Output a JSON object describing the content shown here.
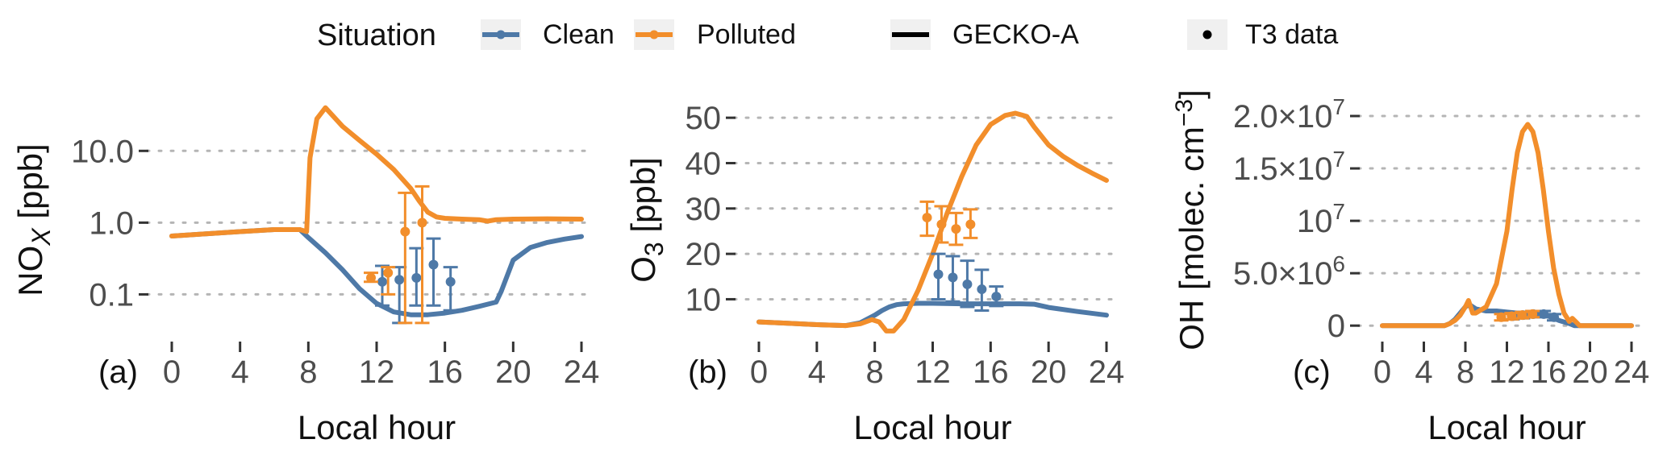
{
  "legend": {
    "title": "Situation",
    "items": [
      {
        "label": "Clean",
        "color": "#4e79a7",
        "kind": "line-point"
      },
      {
        "label": "Polluted",
        "color": "#f28e2b",
        "kind": "line-point"
      },
      {
        "label": "GECKO-A",
        "color": "#000000",
        "kind": "line"
      },
      {
        "label": "T3 data",
        "color": "#000000",
        "kind": "point"
      }
    ]
  },
  "colors": {
    "clean": "#4e79a7",
    "polluted": "#f28e2b",
    "grid": "#b5b5b5"
  },
  "chart_data": [
    {
      "type": "line",
      "panel_label": "(a)",
      "xlabel": "Local hour",
      "ylabel": "NO",
      "ylabel_sub": "X",
      "ylabel_unit": " [ppb]",
      "yscale": "log",
      "xlim": [
        0,
        24
      ],
      "ylim": [
        0.03,
        60
      ],
      "xticks": [
        0,
        4,
        8,
        12,
        16,
        20,
        24
      ],
      "yticks": [
        0.1,
        1,
        10
      ],
      "ytick_labels": [
        "0.1",
        "1.0",
        "10.0"
      ],
      "series": [
        {
          "name": "Clean",
          "source": "GECKO-A",
          "color": "#4e79a7",
          "x": [
            0,
            2,
            4,
            6,
            7.5,
            8,
            9,
            10,
            11,
            12,
            13,
            14,
            15,
            16,
            17,
            18,
            19,
            19.3,
            20,
            21,
            22,
            23,
            24
          ],
          "y": [
            0.65,
            0.7,
            0.75,
            0.8,
            0.8,
            0.62,
            0.38,
            0.22,
            0.12,
            0.075,
            0.057,
            0.052,
            0.052,
            0.055,
            0.06,
            0.068,
            0.078,
            0.11,
            0.3,
            0.45,
            0.53,
            0.59,
            0.64
          ]
        },
        {
          "name": "Polluted",
          "source": "GECKO-A",
          "color": "#f28e2b",
          "x": [
            0,
            2,
            4,
            6,
            7.5,
            7.9,
            8.1,
            8.5,
            9,
            10,
            11,
            12,
            13,
            14,
            14.5,
            15,
            15.5,
            16,
            17,
            18,
            18.5,
            19,
            20,
            22,
            24
          ],
          "y": [
            0.65,
            0.7,
            0.75,
            0.8,
            0.8,
            0.75,
            8.0,
            28.0,
            40.0,
            22.0,
            14.0,
            9.0,
            5.5,
            3.0,
            2.0,
            1.4,
            1.2,
            1.15,
            1.12,
            1.1,
            1.05,
            1.1,
            1.12,
            1.13,
            1.12
          ]
        }
      ],
      "points": [
        {
          "name": "Clean",
          "color": "#4e79a7",
          "x": [
            12,
            13,
            14,
            15,
            16
          ],
          "y": [
            0.15,
            0.16,
            0.17,
            0.26,
            0.15
          ],
          "ylo": [
            0.07,
            0.04,
            0.07,
            0.07,
            0.06
          ],
          "yhi": [
            0.25,
            0.24,
            0.44,
            0.6,
            0.24
          ]
        },
        {
          "name": "Polluted",
          "color": "#f28e2b",
          "x": [
            12,
            13,
            14,
            15
          ],
          "y": [
            0.17,
            0.2,
            0.75,
            1.0
          ],
          "ylo": [
            0.15,
            0.1,
            0.04,
            0.04
          ],
          "yhi": [
            0.2,
            0.24,
            2.6,
            3.2
          ]
        }
      ]
    },
    {
      "type": "line",
      "panel_label": "(b)",
      "xlabel": "Local hour",
      "ylabel": "O",
      "ylabel_sub": "3",
      "ylabel_unit": " [ppb]",
      "yscale": "linear",
      "xlim": [
        0,
        24
      ],
      "ylim": [
        2.8,
        55
      ],
      "xticks": [
        0,
        4,
        8,
        12,
        16,
        20,
        24
      ],
      "yticks": [
        10,
        20,
        30,
        40,
        50
      ],
      "ytick_labels": [
        "10",
        "20",
        "30",
        "40",
        "50"
      ],
      "series": [
        {
          "name": "Clean",
          "source": "GECKO-A",
          "color": "#4e79a7",
          "x": [
            0,
            2,
            4,
            6,
            7,
            8,
            8.5,
            9,
            9.5,
            10,
            11,
            12,
            14,
            16,
            18,
            19,
            20,
            22,
            24
          ],
          "y": [
            5.0,
            4.7,
            4.4,
            4.2,
            4.8,
            6.5,
            7.5,
            8.3,
            8.8,
            9.0,
            9.1,
            9.1,
            9.0,
            9.0,
            9.0,
            8.9,
            8.2,
            7.3,
            6.5
          ]
        },
        {
          "name": "Polluted",
          "source": "GECKO-A",
          "color": "#f28e2b",
          "x": [
            0,
            2,
            4,
            6,
            7,
            7.8,
            8.3,
            8.8,
            9.3,
            10,
            11,
            12,
            13,
            14,
            15,
            16,
            17,
            17.7,
            18.5,
            19,
            20,
            21,
            22,
            23,
            24
          ],
          "y": [
            5.0,
            4.7,
            4.4,
            4.2,
            4.6,
            5.5,
            5.0,
            3.0,
            3.0,
            5.5,
            12.0,
            20.0,
            29.0,
            37.0,
            44.0,
            48.5,
            50.5,
            51.0,
            50.3,
            48.0,
            44.0,
            41.5,
            39.5,
            37.8,
            36.2
          ]
        }
      ],
      "points": [
        {
          "name": "Clean",
          "color": "#4e79a7",
          "x": [
            12,
            13,
            14,
            15,
            16
          ],
          "y": [
            15.5,
            14.8,
            13.3,
            12.2,
            10.6
          ],
          "ylo": [
            10.0,
            9.5,
            8.3,
            7.5,
            8.5
          ],
          "yhi": [
            20.0,
            19.5,
            18.5,
            16.5,
            12.8
          ]
        },
        {
          "name": "Polluted",
          "color": "#f28e2b",
          "x": [
            12,
            13,
            14,
            15
          ],
          "y": [
            28.0,
            26.5,
            25.5,
            26.5
          ],
          "ylo": [
            24.0,
            22.5,
            22.0,
            23.5
          ],
          "yhi": [
            31.5,
            30.5,
            29.0,
            29.8
          ]
        }
      ]
    },
    {
      "type": "line",
      "panel_label": "(c)",
      "xlabel": "Local hour",
      "ylabel": "OH [molec. cm",
      "ylabel_sup": "−3",
      "ylabel_end": "]",
      "yscale": "linear",
      "xlim": [
        0,
        24
      ],
      "ylim": [
        -0.06,
        2.2
      ],
      "xticks": [
        0,
        4,
        8,
        12,
        16,
        20,
        24
      ],
      "xtick_labels": [
        "0",
        "4",
        "8",
        "12",
        "16",
        "20",
        "24"
      ],
      "yticks": [
        0,
        0.5,
        1.0,
        1.5,
        2.0
      ],
      "ytick_labels": [
        {
          "mantissa": "0",
          "exponent": ""
        },
        {
          "mantissa": "5.0×10",
          "exponent": "6"
        },
        {
          "mantissa": "10",
          "exponent": "7"
        },
        {
          "mantissa": "1.5×10",
          "exponent": "7"
        },
        {
          "mantissa": "2.0×10",
          "exponent": "7"
        }
      ],
      "y_unit": "1e7 molec. cm-3",
      "series": [
        {
          "name": "Clean",
          "source": "GECKO-A",
          "color": "#4e79a7",
          "x": [
            0,
            6,
            6.5,
            7,
            7.5,
            8,
            8.4,
            9,
            10,
            11,
            12,
            13,
            14,
            15,
            16,
            17,
            18,
            18.5,
            19,
            24
          ],
          "y": [
            0,
            0,
            0.02,
            0.06,
            0.12,
            0.18,
            0.2,
            0.16,
            0.14,
            0.14,
            0.13,
            0.12,
            0.12,
            0.11,
            0.09,
            0.05,
            0.02,
            0.0,
            0.0,
            0.0
          ]
        },
        {
          "name": "Polluted",
          "source": "GECKO-A",
          "color": "#f28e2b",
          "x": [
            0,
            6,
            6.5,
            7,
            7.5,
            8,
            8.3,
            8.7,
            9,
            10,
            11,
            12,
            12.5,
            13,
            13.5,
            14,
            14.5,
            15,
            15.5,
            16,
            16.5,
            17,
            17.5,
            18,
            18.3,
            18.7,
            19,
            24
          ],
          "y": [
            0,
            0,
            0.02,
            0.05,
            0.1,
            0.18,
            0.24,
            0.12,
            0.12,
            0.18,
            0.4,
            0.9,
            1.3,
            1.65,
            1.85,
            1.92,
            1.85,
            1.65,
            1.3,
            0.9,
            0.55,
            0.3,
            0.12,
            0.04,
            0.07,
            0.03,
            0.0,
            0.0
          ]
        }
      ],
      "points": [
        {
          "name": "Clean",
          "color": "#4e79a7",
          "x": [
            12,
            13,
            14,
            15,
            16
          ],
          "y": [
            0.09,
            0.1,
            0.11,
            0.11,
            0.08
          ],
          "ylo": [
            0.06,
            0.07,
            0.08,
            0.08,
            0.05
          ],
          "yhi": [
            0.12,
            0.13,
            0.14,
            0.14,
            0.11
          ]
        },
        {
          "name": "Polluted",
          "color": "#f28e2b",
          "x": [
            12,
            13,
            14,
            15
          ],
          "y": [
            0.08,
            0.09,
            0.1,
            0.11
          ],
          "ylo": [
            0.05,
            0.06,
            0.07,
            0.08
          ],
          "yhi": [
            0.11,
            0.12,
            0.13,
            0.14
          ]
        }
      ]
    }
  ]
}
